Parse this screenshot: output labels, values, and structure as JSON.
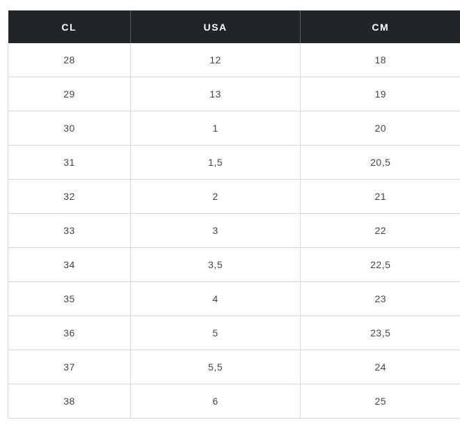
{
  "table": {
    "headers": [
      "CL",
      "USA",
      "CM"
    ],
    "rows": [
      [
        "28",
        "12",
        "18"
      ],
      [
        "29",
        "13",
        "19"
      ],
      [
        "30",
        "1",
        "20"
      ],
      [
        "31",
        "1,5",
        "20,5"
      ],
      [
        "32",
        "2",
        "21"
      ],
      [
        "33",
        "3",
        "22"
      ],
      [
        "34",
        "3,5",
        "22,5"
      ],
      [
        "35",
        "4",
        "23"
      ],
      [
        "36",
        "5",
        "23,5"
      ],
      [
        "37",
        "5,5",
        "24"
      ],
      [
        "38",
        "6",
        "25"
      ]
    ]
  },
  "colors": {
    "header_bg": "#212428",
    "header_text": "#ffffff",
    "cell_text": "#444444",
    "grid_line": "#d9d9d9"
  }
}
